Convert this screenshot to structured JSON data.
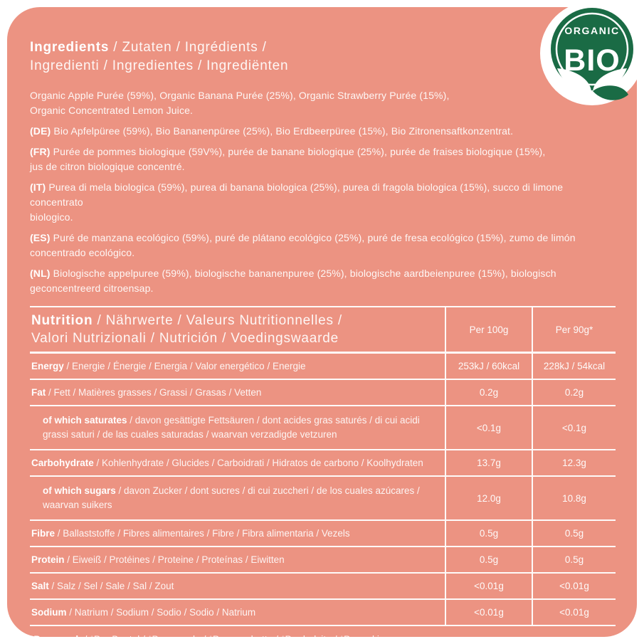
{
  "colors": {
    "label_background": "#EC9382",
    "text_white": "#FFFFFF",
    "badge_green": "#1A6B45"
  },
  "badge": {
    "line1": "ORGANIC",
    "line2": "BIO"
  },
  "ingredients": {
    "title_line1_lead": "Ingredients",
    "title_line1_rest": " / Zutaten / Ingrédients /",
    "title_line2": "Ingredienti / Ingredientes / Ingrediënten",
    "paragraphs": [
      {
        "prefix": "",
        "lines": [
          "Organic Apple Purée (59%), Organic Banana Purée (25%), Organic Strawberry Purée (15%),",
          "Organic Concentrated Lemon Juice."
        ]
      },
      {
        "prefix": "(DE)",
        "lines": [
          "Bio Apfelpüree (59%), Bio Bananenpüree (25%), Bio Erdbeerpüree (15%), Bio Zitronensaftkonzentrat."
        ]
      },
      {
        "prefix": "(FR)",
        "lines": [
          "Purée de pommes biologique (59V%), purée de banane biologique (25%), purée de fraises biologique (15%),",
          "jus de citron biologique concentré."
        ]
      },
      {
        "prefix": "(IT)",
        "lines": [
          "Purea di mela biologica (59%), purea di banana biologica (25%), purea di fragola biologica (15%), succo di limone concentrato",
          "biologico."
        ]
      },
      {
        "prefix": "(ES)",
        "lines": [
          "Puré de manzana ecológico (59%), puré de plátano ecológico (25%), puré de fresa ecológico (15%), zumo de limón",
          "concentrado ecológico."
        ]
      },
      {
        "prefix": "(NL)",
        "lines": [
          "Biologische appelpuree (59%), biologische bananenpuree (25%), biologische aardbeienpuree (15%), biologisch",
          "geconcentreerd citroensap."
        ]
      }
    ]
  },
  "nutrition": {
    "title_line1_lead": "Nutrition",
    "title_line1_rest": " / Nährwerte / Valeurs Nutritionnelles /",
    "title_line2": "Valori Nutrizionali / Nutrición / Voedingswaarde",
    "columns": [
      "Per 100g",
      "Per 90g*"
    ],
    "rows": [
      {
        "lead": "Energy",
        "rest": " / Energie / Énergie / Energia / Valor energético / Energie",
        "per100": "253kJ / 60kcal",
        "per90": "228kJ / 54kcal",
        "indent": false,
        "tall": false
      },
      {
        "lead": "Fat",
        "rest": " / Fett / Matières grasses / Grassi / Grasas / Vetten",
        "per100": "0.2g",
        "per90": "0.2g",
        "indent": false,
        "tall": false
      },
      {
        "lead": "of which saturates",
        "rest": " / davon gesättigte Fettsäuren / dont acides gras saturés / di cui acidi grassi saturi / de las cuales saturadas / waarvan verzadigde vetzuren",
        "per100": "<0.1g",
        "per90": "<0.1g",
        "indent": true,
        "tall": true
      },
      {
        "lead": "Carbohydrate",
        "rest": " / Kohlenhydrate / Glucides / Carboidrati / Hidratos de carbono / Koolhydraten",
        "per100": "13.7g",
        "per90": "12.3g",
        "indent": false,
        "tall": false
      },
      {
        "lead": "of which sugars",
        "rest": " / davon Zucker / dont sucres / di cui zuccheri / de los cuales azúcares / waarvan suikers",
        "per100": "12.0g",
        "per90": "10.8g",
        "indent": true,
        "tall": true
      },
      {
        "lead": "Fibre",
        "rest": " / Ballaststoffe / Fibres alimentaires / Fibre / Fibra alimentaria / Vezels",
        "per100": "0.5g",
        "per90": "0.5g",
        "indent": false,
        "tall": false
      },
      {
        "lead": "Protein",
        "rest": " / Eiweiß / Protéines / Proteine / Proteínas / Eiwitten",
        "per100": "0.5g",
        "per90": "0.5g",
        "indent": false,
        "tall": false
      },
      {
        "lead": "Salt",
        "rest": " / Salz / Sel / Sale / Sal / Zout",
        "per100": "<0.01g",
        "per90": "<0.01g",
        "indent": false,
        "tall": false
      },
      {
        "lead": "Sodium",
        "rest": " / Natrium / Sodium / Sodio / Sodio / Natrium",
        "per100": "<0.01g",
        "per90": "<0.01g",
        "indent": false,
        "tall": false
      }
    ],
    "footnote_lead": "*Per pouch",
    "footnote_rest": " / *Pro Beutel / *Par gourde / *Per sacchetto / *Por bolsita / *Per zakje"
  }
}
